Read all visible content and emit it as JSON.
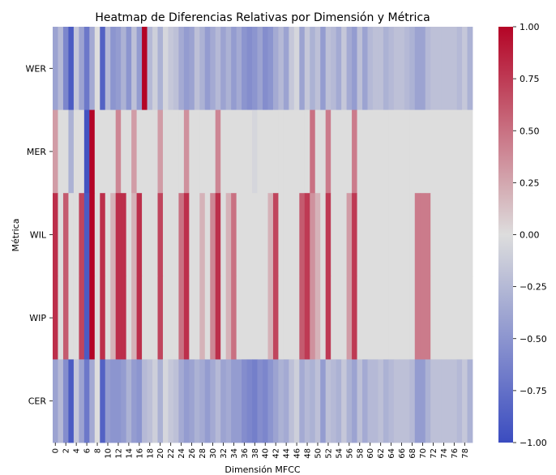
{
  "chart_data": {
    "type": "heatmap",
    "title": "Heatmap de Diferencias Relativas por Dimensión y Métrica",
    "xlabel": "Dimensión MFCC",
    "ylabel": "Métrica",
    "rows": [
      "WER",
      "MER",
      "WIL",
      "WIP",
      "CER"
    ],
    "x_start": 0,
    "x_count": 80,
    "x_tick_labels": [
      "0",
      "2",
      "4",
      "6",
      "8",
      "10",
      "12",
      "14",
      "16",
      "18",
      "20",
      "22",
      "24",
      "26",
      "28",
      "30",
      "32",
      "34",
      "36",
      "38",
      "40",
      "42",
      "44",
      "46",
      "48",
      "50",
      "52",
      "54",
      "56",
      "58",
      "60",
      "62",
      "64",
      "66",
      "68",
      "70",
      "72",
      "74",
      "76",
      "78"
    ],
    "colorbar": {
      "min": -1.0,
      "max": 1.0,
      "ticks": [
        -1.0,
        -0.75,
        -0.5,
        -0.25,
        0.0,
        0.25,
        0.5,
        0.75,
        1.0
      ],
      "tick_labels": [
        "−1.00",
        "−0.75",
        "−0.50",
        "−0.25",
        "0.00",
        "0.25",
        "0.50",
        "0.75",
        "1.00"
      ],
      "colormap": "coolwarm",
      "low_color": "#3b4cc0",
      "mid_color": "#dddddd",
      "high_color": "#b40426"
    },
    "values": [
      [
        -0.4,
        -0.25,
        -0.6,
        -0.9,
        -0.15,
        -0.4,
        -0.7,
        -0.35,
        0,
        -0.85,
        -0.25,
        -0.5,
        -0.45,
        -0.3,
        -0.5,
        -0.2,
        -0.45,
        1.0,
        -0.25,
        -0.1,
        -0.3,
        -0.05,
        -0.15,
        -0.2,
        -0.35,
        -0.45,
        -0.4,
        -0.2,
        -0.3,
        -0.45,
        -0.35,
        -0.25,
        -0.4,
        -0.3,
        -0.45,
        -0.35,
        -0.5,
        -0.55,
        -0.5,
        -0.4,
        -0.55,
        -0.5,
        -0.35,
        -0.25,
        -0.4,
        -0.15,
        -0.05,
        -0.4,
        -0.15,
        -0.3,
        -0.2,
        -0.45,
        -0.2,
        -0.25,
        -0.35,
        -0.15,
        -0.35,
        -0.45,
        -0.2,
        -0.4,
        -0.25,
        -0.2,
        -0.2,
        -0.3,
        -0.25,
        -0.2,
        -0.2,
        -0.25,
        -0.3,
        -0.4,
        -0.4,
        -0.25,
        -0.2,
        -0.2,
        -0.2,
        -0.2,
        -0.2,
        -0.25,
        -0.15,
        -0.3
      ],
      [
        0.3,
        0,
        0,
        -0.3,
        0,
        0,
        -0.95,
        1.0,
        0,
        0,
        0,
        0,
        0.4,
        0,
        0,
        0.3,
        0,
        0,
        0,
        0,
        0.3,
        0,
        0,
        0,
        0,
        0.35,
        0,
        0,
        0,
        0,
        0,
        0.4,
        0,
        0,
        0,
        0,
        0,
        0,
        -0.05,
        0,
        0,
        0,
        0,
        0,
        0,
        0,
        0,
        0,
        0,
        0.5,
        0,
        0,
        0.45,
        0,
        0,
        0,
        0,
        0.45,
        0,
        0,
        0,
        0,
        0,
        0,
        0,
        0,
        0,
        0,
        0,
        0,
        0,
        0,
        0,
        0,
        0,
        0,
        0,
        0,
        0,
        0
      ],
      [
        0.8,
        0,
        0.6,
        0,
        0,
        0.7,
        -0.9,
        1.0,
        0,
        0.8,
        0,
        0.2,
        0.8,
        0.8,
        0,
        0.2,
        0.8,
        0,
        0,
        0,
        0.7,
        0,
        0,
        0,
        0.5,
        0.8,
        0,
        0,
        0.2,
        0,
        0.4,
        0.8,
        0,
        0.2,
        0.5,
        0,
        0,
        0,
        0,
        0,
        0,
        0.2,
        0.7,
        0,
        0,
        0,
        0,
        0.6,
        0.75,
        0.35,
        0.2,
        0,
        0.75,
        0,
        0,
        0,
        0.3,
        0.75,
        0,
        0,
        0,
        0,
        0,
        0,
        0,
        0,
        0,
        0,
        0,
        0.45,
        0.45,
        0.45,
        0,
        0,
        0,
        0,
        0,
        0,
        0,
        0
      ],
      [
        0.8,
        0,
        0.6,
        0,
        0,
        0.7,
        -0.9,
        1.0,
        0,
        0.8,
        0,
        0.2,
        0.8,
        0.8,
        0,
        0.2,
        0.8,
        0,
        0,
        0,
        0.7,
        0,
        0,
        0,
        0.5,
        0.8,
        0,
        0,
        0.2,
        0,
        0.4,
        0.8,
        0,
        0.2,
        0.5,
        0,
        0,
        0,
        0,
        0,
        0,
        0.2,
        0.7,
        0,
        0,
        0,
        0,
        0.6,
        0.75,
        0.35,
        0.2,
        0,
        0.75,
        0,
        0,
        0,
        0.3,
        0.75,
        0,
        0,
        0,
        0,
        0,
        0,
        0,
        0,
        0,
        0,
        0,
        0.45,
        0.45,
        0.45,
        0,
        0,
        0,
        0,
        0,
        0,
        0,
        0
      ],
      [
        -0.4,
        -0.25,
        -0.55,
        -0.9,
        -0.15,
        -0.4,
        -0.7,
        -0.35,
        0,
        -0.85,
        -0.45,
        -0.5,
        -0.5,
        -0.45,
        -0.3,
        -0.45,
        -0.5,
        -0.25,
        -0.2,
        -0.1,
        -0.3,
        -0.05,
        -0.15,
        -0.2,
        -0.35,
        -0.45,
        -0.4,
        -0.3,
        -0.35,
        -0.45,
        -0.35,
        -0.25,
        -0.4,
        -0.35,
        -0.45,
        -0.45,
        -0.55,
        -0.6,
        -0.65,
        -0.55,
        -0.6,
        -0.5,
        -0.4,
        -0.3,
        -0.35,
        -0.2,
        -0.1,
        -0.35,
        -0.25,
        -0.3,
        -0.2,
        -0.45,
        -0.2,
        -0.25,
        -0.3,
        -0.15,
        -0.3,
        -0.4,
        -0.2,
        -0.35,
        -0.25,
        -0.25,
        -0.2,
        -0.3,
        -0.25,
        -0.2,
        -0.2,
        -0.2,
        -0.25,
        -0.45,
        -0.45,
        -0.3,
        -0.2,
        -0.2,
        -0.2,
        -0.2,
        -0.2,
        -0.25,
        -0.15,
        -0.3
      ]
    ]
  }
}
